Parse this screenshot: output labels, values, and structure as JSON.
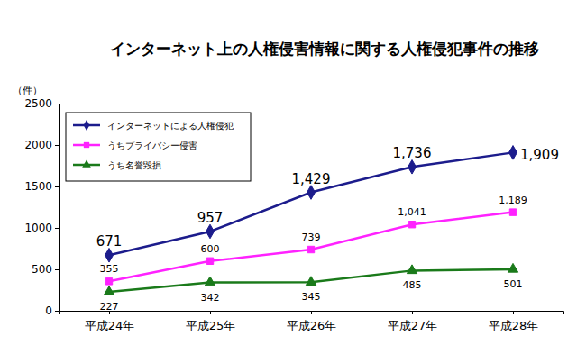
{
  "chart_data": {
    "type": "line",
    "title": "インターネット上の人権侵害情報に関する人権侵犯事件の推移",
    "y_label": "（件）",
    "categories": [
      "平成24年",
      "平成25年",
      "平成26年",
      "平成27年",
      "平成28年"
    ],
    "series": [
      {
        "name": "インターネットによる人権侵犯",
        "color": "#1c1c8c",
        "marker": "diamond",
        "values": [
          671,
          957,
          1429,
          1736,
          1909
        ],
        "value_labels": [
          "671",
          "957",
          "1,429",
          "1,736",
          "1,909"
        ]
      },
      {
        "name": "うちプライバシー侵害",
        "color": "#ff22ff",
        "marker": "square",
        "values": [
          355,
          600,
          739,
          1041,
          1189
        ],
        "value_labels": [
          "355",
          "600",
          "739",
          "1,041",
          "1,189"
        ]
      },
      {
        "name": "うち名誉毀損",
        "color": "#1a7a1a",
        "marker": "triangle",
        "values": [
          227,
          342,
          345,
          485,
          501
        ]
      }
    ],
    "ylim": [
      0,
      2500
    ],
    "yticks": [
      0,
      500,
      1000,
      1500,
      2000,
      2500
    ],
    "grid": false,
    "legend": "upper left",
    "data_labels": true
  }
}
